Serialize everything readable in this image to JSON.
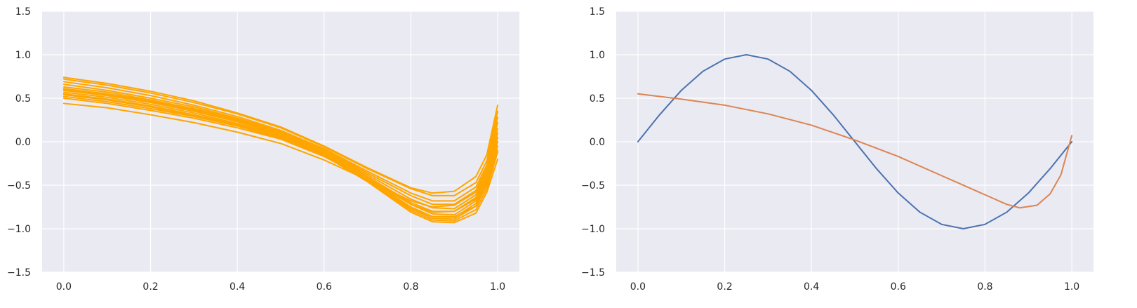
{
  "chart_data": [
    {
      "type": "line",
      "title": "",
      "xlabel": "",
      "ylabel": "",
      "xlim": [
        -0.05,
        1.05
      ],
      "ylim": [
        -1.5,
        1.5
      ],
      "xticks": [
        "0.0",
        "0.2",
        "0.4",
        "0.6",
        "0.8",
        "1.0"
      ],
      "yticks": [
        "1.5",
        "1.0",
        "0.5",
        "0.0",
        "−0.5",
        "−1.0",
        "−1.5"
      ],
      "grid": true,
      "legend": "none",
      "line_color": "#ffa500",
      "x": [
        0.0,
        0.1,
        0.2,
        0.3,
        0.4,
        0.5,
        0.6,
        0.7,
        0.8,
        0.85,
        0.9,
        0.95,
        0.975,
        1.0
      ],
      "series": [
        {
          "values": [
            0.74,
            0.67,
            0.58,
            0.47,
            0.33,
            0.17,
            -0.05,
            -0.3,
            -0.53,
            -0.59,
            -0.57,
            -0.4,
            -0.15,
            0.42
          ]
        },
        {
          "values": [
            0.72,
            0.65,
            0.56,
            0.45,
            0.32,
            0.16,
            -0.06,
            -0.31,
            -0.54,
            -0.62,
            -0.62,
            -0.47,
            -0.22,
            0.35
          ]
        },
        {
          "values": [
            0.69,
            0.62,
            0.53,
            0.42,
            0.29,
            0.13,
            -0.08,
            -0.34,
            -0.59,
            -0.68,
            -0.68,
            -0.52,
            -0.27,
            0.28
          ]
        },
        {
          "values": [
            0.66,
            0.59,
            0.5,
            0.4,
            0.27,
            0.12,
            -0.09,
            -0.36,
            -0.62,
            -0.72,
            -0.72,
            -0.56,
            -0.3,
            0.22
          ]
        },
        {
          "values": [
            0.63,
            0.57,
            0.48,
            0.38,
            0.26,
            0.11,
            -0.1,
            -0.38,
            -0.66,
            -0.76,
            -0.77,
            -0.61,
            -0.35,
            0.15
          ]
        },
        {
          "values": [
            0.61,
            0.55,
            0.47,
            0.37,
            0.25,
            0.1,
            -0.11,
            -0.4,
            -0.7,
            -0.8,
            -0.8,
            -0.64,
            -0.38,
            0.1
          ]
        },
        {
          "values": [
            0.6,
            0.54,
            0.46,
            0.36,
            0.24,
            0.09,
            -0.12,
            -0.41,
            -0.72,
            -0.83,
            -0.84,
            -0.68,
            -0.42,
            0.05
          ]
        },
        {
          "values": [
            0.59,
            0.53,
            0.45,
            0.35,
            0.23,
            0.08,
            -0.13,
            -0.43,
            -0.75,
            -0.86,
            -0.87,
            -0.71,
            -0.45,
            0.0
          ]
        },
        {
          "values": [
            0.57,
            0.51,
            0.43,
            0.33,
            0.21,
            0.07,
            -0.14,
            -0.44,
            -0.77,
            -0.88,
            -0.89,
            -0.74,
            -0.48,
            -0.05
          ]
        },
        {
          "values": [
            0.55,
            0.49,
            0.41,
            0.31,
            0.2,
            0.06,
            -0.15,
            -0.45,
            -0.79,
            -0.9,
            -0.91,
            -0.78,
            -0.54,
            -0.12
          ]
        },
        {
          "values": [
            0.54,
            0.48,
            0.4,
            0.3,
            0.19,
            0.05,
            -0.16,
            -0.46,
            -0.81,
            -0.92,
            -0.93,
            -0.82,
            -0.58,
            -0.2
          ]
        },
        {
          "values": [
            0.52,
            0.46,
            0.38,
            0.29,
            0.18,
            0.04,
            -0.16,
            -0.45,
            -0.76,
            -0.86,
            -0.86,
            -0.74,
            -0.5,
            -0.1
          ]
        },
        {
          "values": [
            0.5,
            0.44,
            0.36,
            0.27,
            0.16,
            0.03,
            -0.17,
            -0.43,
            -0.72,
            -0.81,
            -0.8,
            -0.66,
            -0.42,
            0.0
          ]
        },
        {
          "values": [
            0.44,
            0.39,
            0.31,
            0.22,
            0.11,
            -0.02,
            -0.21,
            -0.44,
            -0.68,
            -0.75,
            -0.73,
            -0.58,
            -0.34,
            0.05
          ]
        }
      ]
    },
    {
      "type": "line",
      "title": "",
      "xlabel": "",
      "ylabel": "",
      "xlim": [
        -0.05,
        1.05
      ],
      "ylim": [
        -1.5,
        1.5
      ],
      "xticks": [
        "0.0",
        "0.2",
        "0.4",
        "0.6",
        "0.8",
        "1.0"
      ],
      "yticks": [
        "1.5",
        "1.0",
        "0.5",
        "0.0",
        "−0.5",
        "−1.0",
        "−1.5"
      ],
      "grid": true,
      "legend": "none",
      "series": [
        {
          "color": "#4c72b0",
          "x": [
            0.0,
            0.05,
            0.1,
            0.15,
            0.2,
            0.25,
            0.3,
            0.35,
            0.4,
            0.45,
            0.5,
            0.55,
            0.6,
            0.65,
            0.7,
            0.75,
            0.8,
            0.85,
            0.9,
            0.95,
            1.0
          ],
          "values": [
            0.0,
            0.31,
            0.59,
            0.81,
            0.95,
            1.0,
            0.95,
            0.81,
            0.59,
            0.31,
            0.0,
            -0.31,
            -0.59,
            -0.81,
            -0.95,
            -1.0,
            -0.95,
            -0.81,
            -0.59,
            -0.31,
            0.0
          ]
        },
        {
          "color": "#dd8452",
          "x": [
            0.0,
            0.1,
            0.2,
            0.3,
            0.4,
            0.5,
            0.6,
            0.7,
            0.8,
            0.85,
            0.88,
            0.92,
            0.95,
            0.975,
            1.0
          ],
          "values": [
            0.55,
            0.49,
            0.42,
            0.32,
            0.19,
            0.02,
            -0.17,
            -0.39,
            -0.61,
            -0.72,
            -0.76,
            -0.73,
            -0.6,
            -0.38,
            0.07
          ]
        }
      ]
    }
  ]
}
